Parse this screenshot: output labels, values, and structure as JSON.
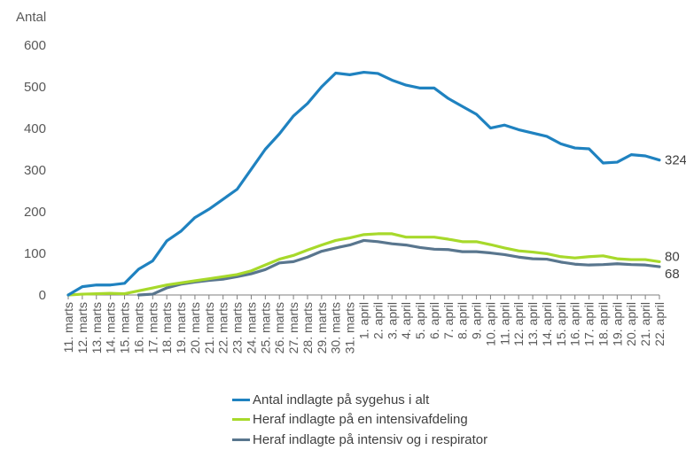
{
  "chart_data": {
    "type": "line",
    "ylabel": "Antal",
    "ylim": [
      0,
      600
    ],
    "yticks": [
      0,
      100,
      200,
      300,
      400,
      500,
      600
    ],
    "grid": false,
    "legend_position": "bottom",
    "categories": [
      "11. marts",
      "12. marts",
      "13. marts",
      "14. marts",
      "15. marts",
      "16. marts",
      "17. marts",
      "18. marts",
      "19. marts",
      "20. marts",
      "21. marts",
      "22. marts",
      "23. marts",
      "24. marts",
      "25. marts",
      "26. marts",
      "27. marts",
      "28. marts",
      "29. marts",
      "30. marts",
      "31. marts",
      "1. april",
      "2. april",
      "3. april",
      "4. april",
      "5. april",
      "6. april",
      "7. april",
      "8. april",
      "9. april",
      "10. april",
      "11. april",
      "12. april",
      "13. april",
      "14. april",
      "15. april",
      "16. april",
      "17. april",
      "18. april",
      "19. april",
      "20. april",
      "21. april",
      "22. april"
    ],
    "series": [
      {
        "name": "Antal indlagte på sygehus i alt",
        "color": "#1f82c0",
        "end_label": "324",
        "values": [
          0,
          20,
          24,
          24,
          28,
          62,
          82,
          130,
          153,
          186,
          206,
          230,
          254,
          302,
          350,
          387,
          430,
          460,
          500,
          533,
          529,
          535,
          532,
          516,
          504,
          497,
          497,
          472,
          453,
          434,
          401,
          408,
          397,
          389,
          381,
          363,
          353,
          351,
          317,
          319,
          337,
          334,
          324
        ]
      },
      {
        "name": "Heraf indlagte på en intensivafdeling",
        "color": "#a7d92b",
        "end_label": "80",
        "values": [
          0,
          2,
          3,
          4,
          3,
          10,
          17,
          24,
          29,
          34,
          39,
          44,
          49,
          58,
          72,
          86,
          95,
          108,
          120,
          131,
          137,
          145,
          147,
          147,
          139,
          139,
          139,
          134,
          128,
          128,
          121,
          113,
          106,
          103,
          99,
          92,
          89,
          92,
          94,
          87,
          85,
          85,
          80
        ]
      },
      {
        "name": "Heraf indlagte på intensiv og i respirator",
        "color": "#59768e",
        "end_label": "68",
        "values": [
          null,
          null,
          null,
          null,
          null,
          0,
          2,
          17,
          26,
          31,
          35,
          38,
          44,
          51,
          61,
          77,
          80,
          91,
          105,
          113,
          120,
          131,
          128,
          123,
          120,
          114,
          110,
          109,
          104,
          104,
          101,
          97,
          91,
          87,
          86,
          79,
          74,
          72,
          73,
          75,
          73,
          72,
          68
        ]
      }
    ]
  }
}
